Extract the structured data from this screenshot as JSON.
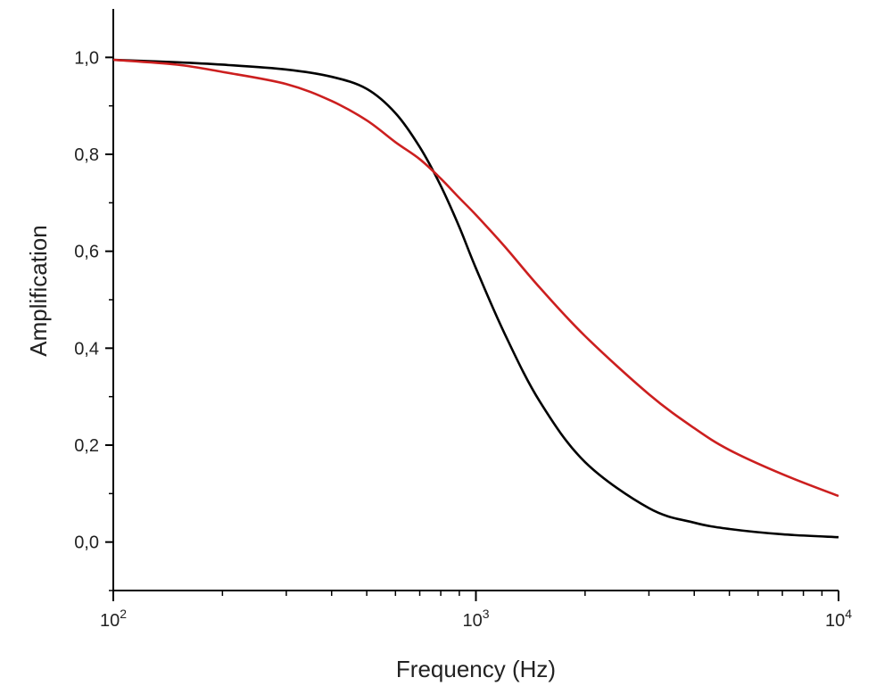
{
  "chart_data": {
    "type": "line",
    "xlabel": "Frequency (Hz)",
    "ylabel": "Amplification",
    "xscale": "log",
    "xlim": [
      100,
      10000
    ],
    "ylim": [
      -0.1,
      1.1
    ],
    "x_ticks": [
      {
        "value": 100,
        "base": "10",
        "exp": "2"
      },
      {
        "value": 1000,
        "base": "10",
        "exp": "3"
      },
      {
        "value": 10000,
        "base": "10",
        "exp": "4"
      }
    ],
    "y_ticks": [
      {
        "value": 0.0,
        "label": "0,0"
      },
      {
        "value": 0.2,
        "label": "0,2"
      },
      {
        "value": 0.4,
        "label": "0,4"
      },
      {
        "value": 0.6,
        "label": "0,6"
      },
      {
        "value": 0.8,
        "label": "0,8"
      },
      {
        "value": 1.0,
        "label": "1,0"
      }
    ],
    "grid": false,
    "series": [
      {
        "color": "#000000",
        "x": [
          100,
          150,
          200,
          300,
          400,
          500,
          600,
          700,
          800,
          900,
          1000,
          1200,
          1500,
          2000,
          3000,
          4000,
          5000,
          7000,
          10000
        ],
        "y": [
          0.995,
          0.99,
          0.985,
          0.975,
          0.96,
          0.935,
          0.885,
          0.815,
          0.735,
          0.65,
          0.565,
          0.43,
          0.29,
          0.165,
          0.07,
          0.04,
          0.027,
          0.016,
          0.01
        ]
      },
      {
        "color": "#cc1f1f",
        "x": [
          100,
          150,
          200,
          300,
          400,
          500,
          600,
          700,
          800,
          900,
          1000,
          1200,
          1500,
          2000,
          3000,
          4000,
          5000,
          7000,
          10000
        ],
        "y": [
          0.995,
          0.985,
          0.97,
          0.945,
          0.91,
          0.87,
          0.825,
          0.79,
          0.75,
          0.71,
          0.675,
          0.61,
          0.525,
          0.425,
          0.305,
          0.235,
          0.19,
          0.14,
          0.095
        ]
      }
    ]
  }
}
